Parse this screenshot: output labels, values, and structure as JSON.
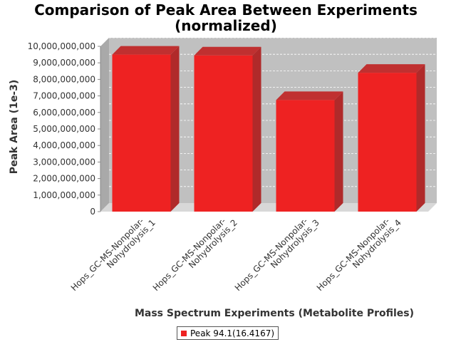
{
  "chart_data": {
    "type": "bar",
    "title_lines": [
      "Comparison of Peak Area Between Experiments",
      "(normalized)"
    ],
    "xlabel": "Mass Spectrum Experiments (Metabolite Profiles)",
    "ylabel": "Peak Area (1e-3)",
    "ylim": [
      0,
      10000000000
    ],
    "yticks": [
      0,
      1000000000,
      2000000000,
      3000000000,
      4000000000,
      5000000000,
      6000000000,
      7000000000,
      8000000000,
      9000000000,
      10000000000
    ],
    "ytick_labels": [
      "0",
      "1,000,000,000",
      "2,000,000,000",
      "3,000,000,000",
      "4,000,000,000",
      "5,000,000,000",
      "6,000,000,000",
      "7,000,000,000",
      "8,000,000,000",
      "9,000,000,000",
      "10,000,000,000"
    ],
    "categories": [
      [
        "Hops_GC-MS-Nonpolar-",
        "Nohydrolysis_1"
      ],
      [
        "Hops_GC-MS-Nonpolar-",
        "Nohydrolysis_2"
      ],
      [
        "Hops_GC-MS-Nonpolar-",
        "Nohydrolysis_3"
      ],
      [
        "Hops_GC-MS-Nonpolar-",
        "Nohydrolysis_4"
      ]
    ],
    "series": [
      {
        "name": "Peak 94.1(16.4167)",
        "color": "#ee2222",
        "values": [
          9500000000,
          9450000000,
          6750000000,
          8400000000
        ]
      }
    ],
    "grid": true,
    "legend_position": "bottom"
  }
}
